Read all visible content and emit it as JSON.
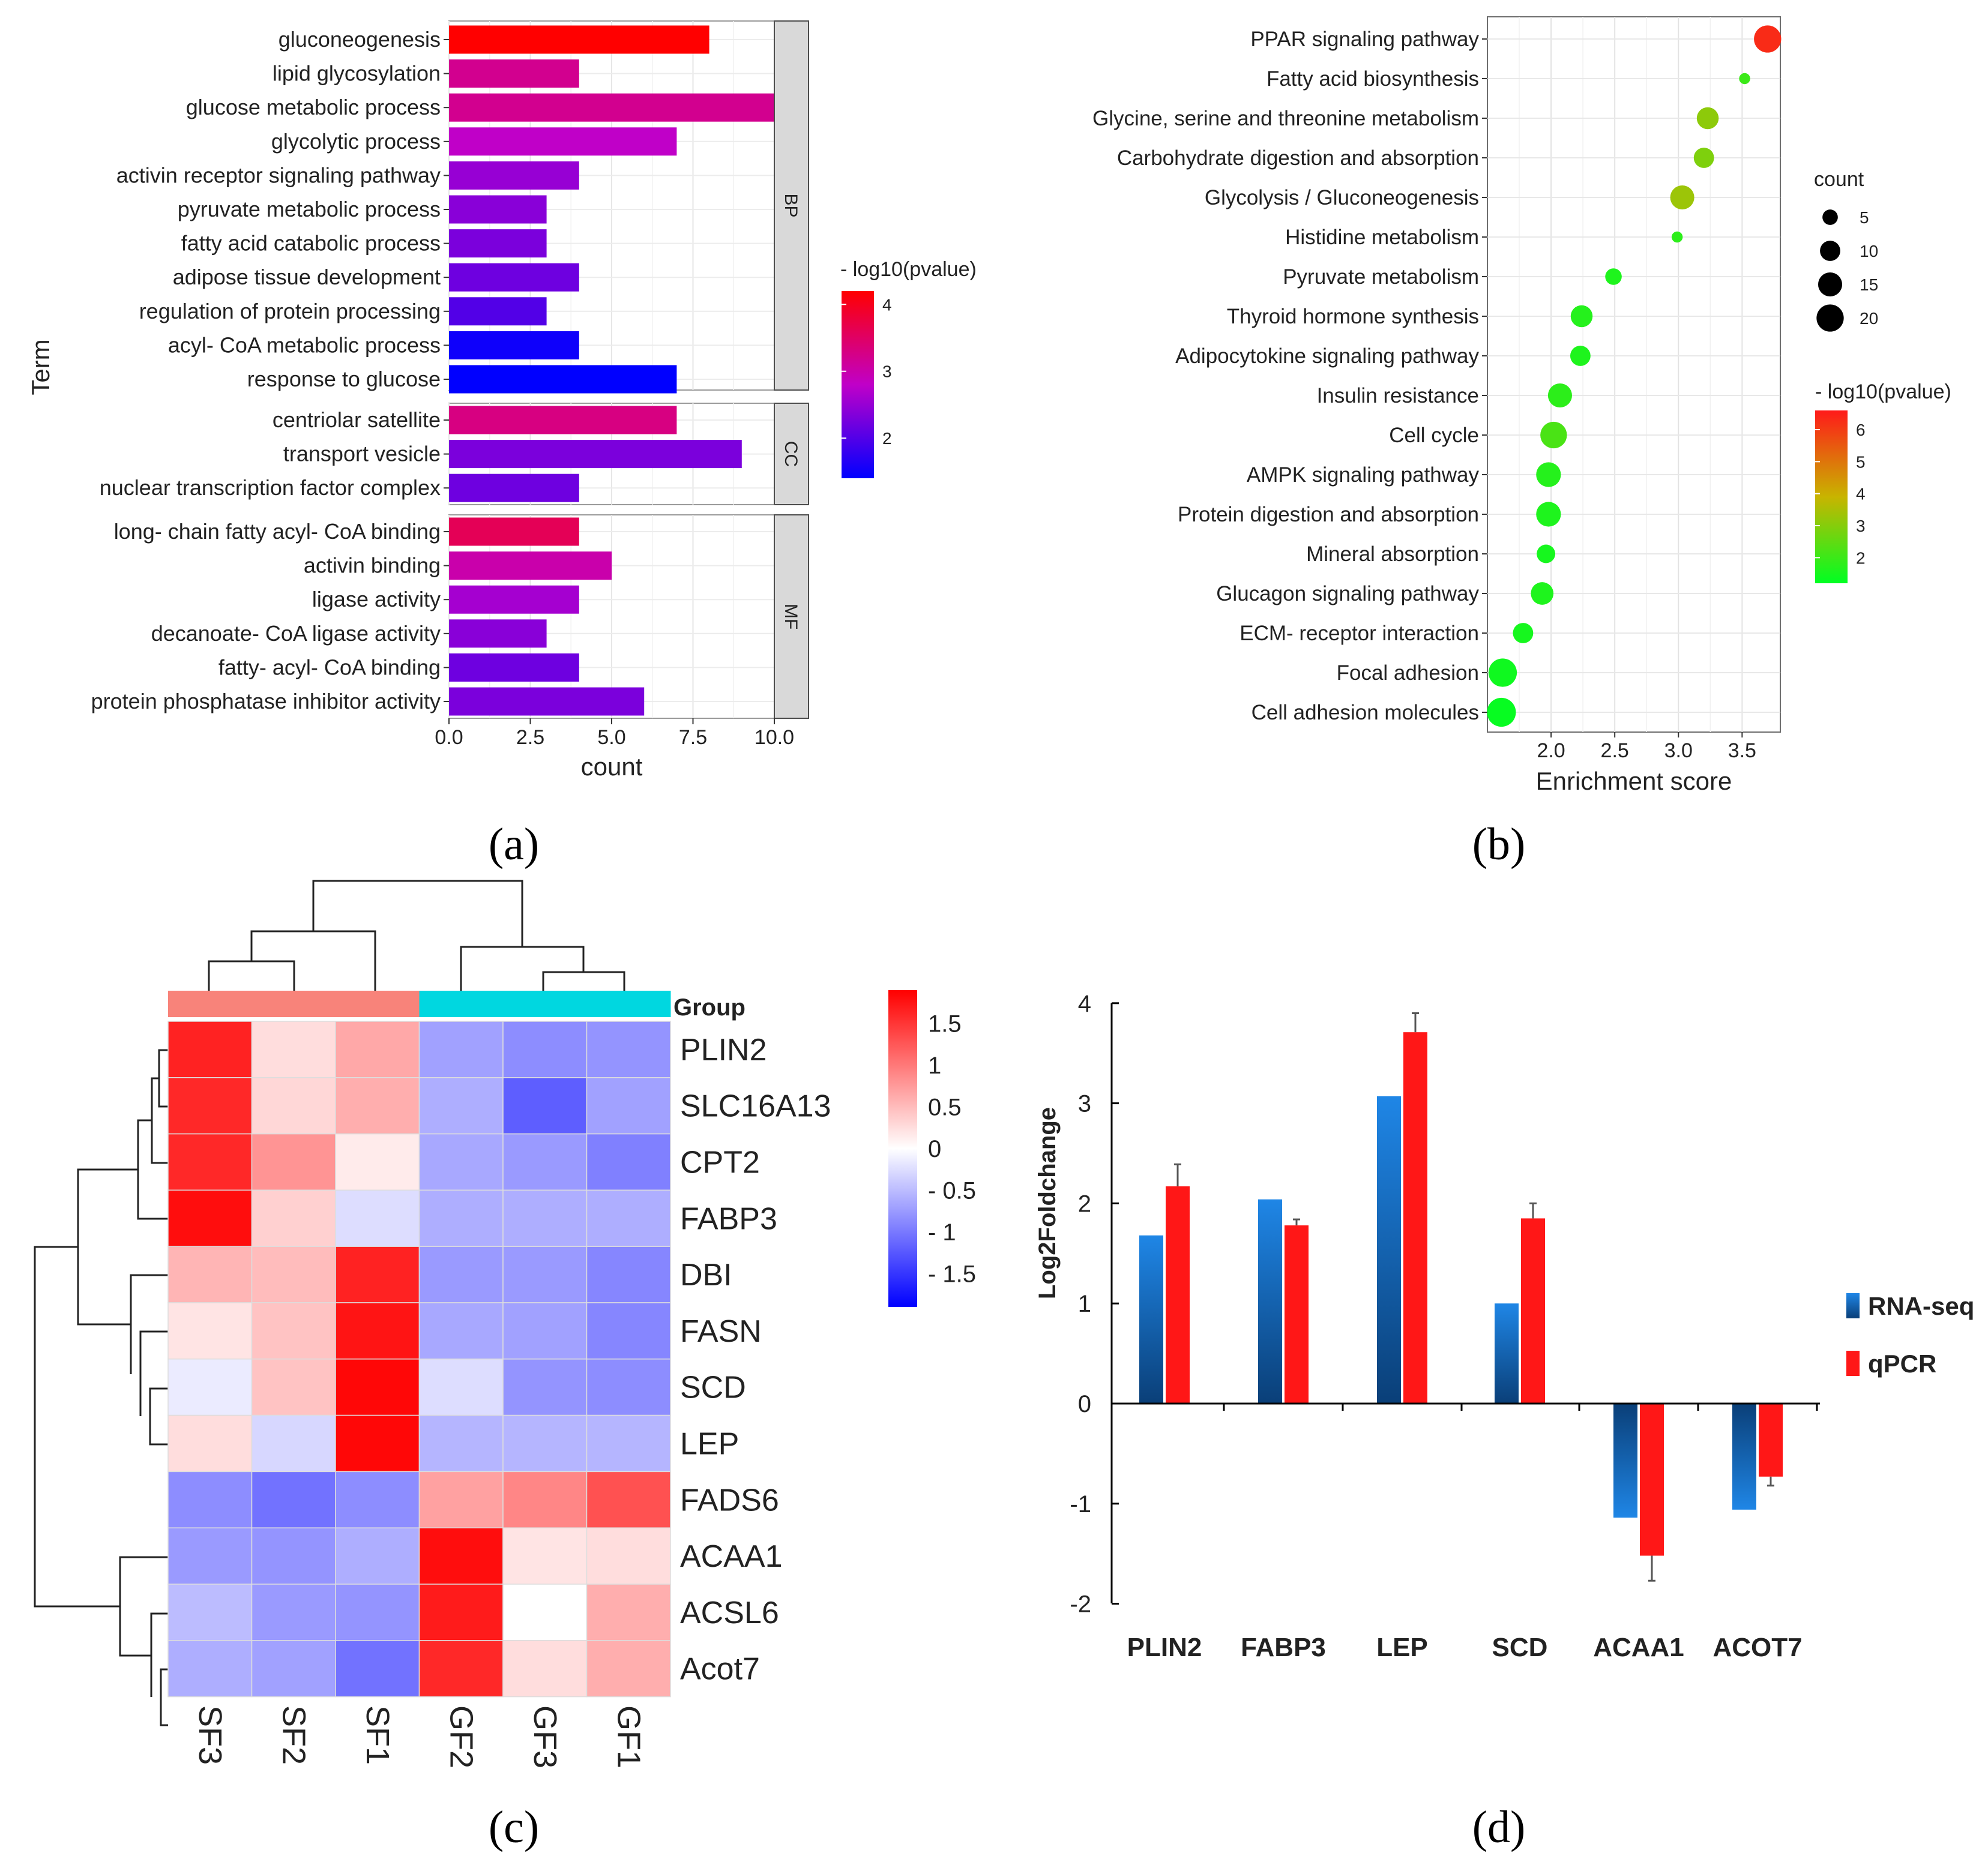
{
  "panel_labels": [
    "(a)",
    "(b)",
    "(c)",
    "(d)"
  ],
  "chart_data": [
    {
      "panel": "a",
      "type": "bar",
      "orientation": "horizontal",
      "title": "",
      "xlabel": "count",
      "ylabel": "Term",
      "xlim": [
        0,
        10
      ],
      "xticks": [
        "0.0",
        "2.5",
        "5.0",
        "7.5",
        "10.0"
      ],
      "colorbar": {
        "title": "- log10(pvalue)",
        "ticks": [
          "2",
          "3",
          "4"
        ],
        "min": 1.4,
        "max": 4.2,
        "low_color": "#0000ff",
        "mid_color": "#c000c8",
        "high_color": "#ff0000"
      },
      "facets": [
        {
          "name": "BP",
          "terms": [
            {
              "label": "gluconeogenesis",
              "count": 8,
              "color_value": 4.2
            },
            {
              "label": "lipid glycosylation",
              "count": 4,
              "color_value": 3.2
            },
            {
              "label": "glucose metabolic process",
              "count": 10,
              "color_value": 3.2
            },
            {
              "label": "glycolytic process",
              "count": 7,
              "color_value": 2.8
            },
            {
              "label": "activin receptor signaling pathway",
              "count": 4,
              "color_value": 2.5
            },
            {
              "label": "pyruvate metabolic process",
              "count": 3,
              "color_value": 2.4
            },
            {
              "label": "fatty acid catabolic process",
              "count": 3,
              "color_value": 2.3
            },
            {
              "label": "adipose tissue development",
              "count": 4,
              "color_value": 2.2
            },
            {
              "label": "regulation of protein processing",
              "count": 3,
              "color_value": 2.0
            },
            {
              "label": "acyl- CoA metabolic process",
              "count": 4,
              "color_value": 1.5
            },
            {
              "label": "response to glucose",
              "count": 7,
              "color_value": 1.4
            }
          ]
        },
        {
          "name": "CC",
          "terms": [
            {
              "label": "centriolar satellite",
              "count": 7,
              "color_value": 3.3
            },
            {
              "label": "transport vesicle",
              "count": 9,
              "color_value": 2.3
            },
            {
              "label": "nuclear transcription factor complex",
              "count": 4,
              "color_value": 2.2
            }
          ]
        },
        {
          "name": "MF",
          "terms": [
            {
              "label": "long- chain fatty acyl- CoA binding",
              "count": 4,
              "color_value": 3.6
            },
            {
              "label": "activin binding",
              "count": 5,
              "color_value": 3.0
            },
            {
              "label": "ligase activity",
              "count": 4,
              "color_value": 2.6
            },
            {
              "label": "decanoate- CoA ligase activity",
              "count": 3,
              "color_value": 2.4
            },
            {
              "label": "fatty- acyl- CoA binding",
              "count": 4,
              "color_value": 2.2
            },
            {
              "label": "protein phosphatase inhibitor activity",
              "count": 6,
              "color_value": 2.3
            }
          ]
        }
      ]
    },
    {
      "panel": "b",
      "type": "scatter",
      "title": "",
      "xlabel": "Enrichment score",
      "ylabel": "",
      "xlim": [
        1.5,
        3.8
      ],
      "xticks": [
        "2.0",
        "2.5",
        "3.0",
        "3.5"
      ],
      "size_legend": {
        "title": "count",
        "values": [
          5,
          10,
          15,
          20
        ]
      },
      "colorbar": {
        "title": "- log10(pvalue)",
        "ticks": [
          "2",
          "3",
          "4",
          "5",
          "6"
        ],
        "min": 1.2,
        "max": 6.6,
        "low_color": "#00ff22",
        "mid_color": "#c8b400",
        "high_color": "#ff1a1a"
      },
      "points": [
        {
          "label": "PPAR signaling pathway",
          "x": 3.7,
          "count": 20,
          "color_value": 6.3
        },
        {
          "label": "Fatty acid biosynthesis",
          "x": 3.52,
          "count": 2,
          "color_value": 2.0
        },
        {
          "label": "Glycine, serine and threonine metabolism",
          "x": 3.23,
          "count": 12,
          "color_value": 3.1
        },
        {
          "label": "Carbohydrate digestion and absorption",
          "x": 3.2,
          "count": 10,
          "color_value": 2.9
        },
        {
          "label": "Glycolysis / Gluconeogenesis",
          "x": 3.03,
          "count": 15,
          "color_value": 3.3
        },
        {
          "label": "Histidine metabolism",
          "x": 2.99,
          "count": 2,
          "color_value": 1.8
        },
        {
          "label": "Pyruvate metabolism",
          "x": 2.49,
          "count": 6,
          "color_value": 1.6
        },
        {
          "label": "Thyroid hormone synthesis",
          "x": 2.24,
          "count": 12,
          "color_value": 1.7
        },
        {
          "label": "Adipocytokine signaling pathway",
          "x": 2.23,
          "count": 10,
          "color_value": 1.6
        },
        {
          "label": "Insulin resistance",
          "x": 2.07,
          "count": 15,
          "color_value": 1.8
        },
        {
          "label": "Cell cycle",
          "x": 2.02,
          "count": 19,
          "color_value": 2.2
        },
        {
          "label": "AMPK signaling pathway",
          "x": 1.98,
          "count": 16,
          "color_value": 1.7
        },
        {
          "label": "Protein digestion and absorption",
          "x": 1.98,
          "count": 16,
          "color_value": 1.6
        },
        {
          "label": "Mineral absorption",
          "x": 1.96,
          "count": 8,
          "color_value": 1.5
        },
        {
          "label": "Glucagon signaling pathway",
          "x": 1.93,
          "count": 13,
          "color_value": 1.6
        },
        {
          "label": "ECM- receptor interaction",
          "x": 1.78,
          "count": 10,
          "color_value": 1.5
        },
        {
          "label": "Focal adhesion",
          "x": 1.62,
          "count": 22,
          "color_value": 1.4
        },
        {
          "label": "Cell adhesion molecules",
          "x": 1.61,
          "count": 23,
          "color_value": 1.3
        }
      ]
    },
    {
      "panel": "c",
      "type": "heatmap",
      "title": "",
      "group_label": "Group",
      "columns": [
        "SF3",
        "SF2",
        "SF1",
        "GF2",
        "GF3",
        "GF1"
      ],
      "column_groups": [
        "SF",
        "SF",
        "SF",
        "GF",
        "GF",
        "GF"
      ],
      "group_colors": {
        "SF": "#f8837a",
        "GF": "#00d7e0"
      },
      "rows": [
        "PLIN2",
        "SLC16A13",
        "CPT2",
        "FABP3",
        "DBI",
        "FASN",
        "SCD",
        "LEP",
        "FADS6",
        "ACAA1",
        "ACSL6",
        "Acot7"
      ],
      "values": [
        [
          1.65,
          0.25,
          0.65,
          -0.7,
          -0.85,
          -0.8
        ],
        [
          1.6,
          0.3,
          0.6,
          -0.6,
          -1.2,
          -0.7
        ],
        [
          1.6,
          0.8,
          0.15,
          -0.65,
          -0.75,
          -0.95
        ],
        [
          1.8,
          0.35,
          -0.25,
          -0.6,
          -0.6,
          -0.6
        ],
        [
          0.55,
          0.5,
          1.65,
          -0.75,
          -0.75,
          -0.9
        ],
        [
          0.2,
          0.45,
          1.75,
          -0.65,
          -0.7,
          -0.9
        ],
        [
          -0.15,
          0.45,
          1.85,
          -0.25,
          -0.8,
          -0.85
        ],
        [
          0.25,
          -0.3,
          1.85,
          -0.55,
          -0.55,
          -0.55
        ],
        [
          -0.85,
          -1.05,
          -0.85,
          0.7,
          0.9,
          1.3
        ],
        [
          -0.75,
          -0.8,
          -0.6,
          1.8,
          0.2,
          0.25
        ],
        [
          -0.5,
          -0.75,
          -0.8,
          1.7,
          0.0,
          0.6
        ],
        [
          -0.6,
          -0.7,
          -1.05,
          1.6,
          0.25,
          0.6
        ]
      ],
      "colorbar": {
        "ticks": [
          "1.5",
          "1",
          "0.5",
          "0",
          "- 0.5",
          "- 1",
          "- 1.5"
        ],
        "min": -1.9,
        "max": 1.9
      }
    },
    {
      "panel": "d",
      "type": "bar",
      "title": "",
      "xlabel": "",
      "ylabel": "Log2Foldchange",
      "ylim": [
        -2,
        4
      ],
      "yticks": [
        "4",
        "3",
        "2",
        "1",
        "0",
        "-1",
        "-2"
      ],
      "categories": [
        "PLIN2",
        "FABP3",
        "LEP",
        "SCD",
        "ACAA1",
        "ACOT7"
      ],
      "series": [
        {
          "name": "RNA-seq",
          "color": "#1b74c8",
          "values": [
            1.68,
            2.04,
            3.07,
            1.0,
            -1.14,
            -1.06
          ]
        },
        {
          "name": "qPCR",
          "color": "#ff1717",
          "values": [
            2.17,
            1.78,
            3.71,
            1.85,
            -1.52,
            -0.73
          ],
          "errors": [
            0.22,
            0.06,
            0.19,
            0.15,
            0.25,
            0.09
          ]
        }
      ]
    }
  ]
}
